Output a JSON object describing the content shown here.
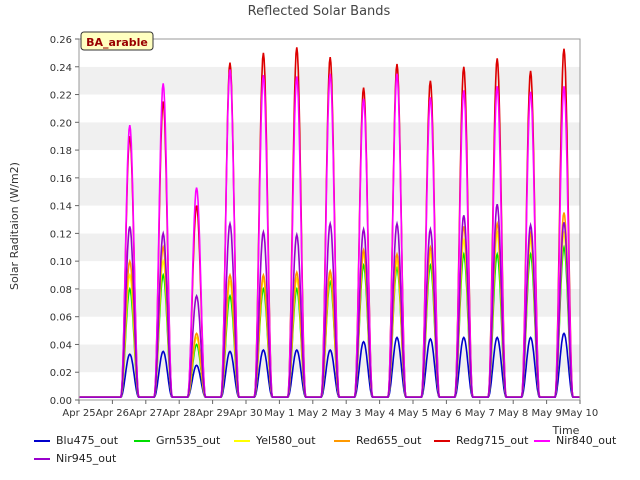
{
  "chart_data": {
    "type": "line",
    "title": "Reflected Solar Bands",
    "xlabel": "Time",
    "ylabel": "Solar Raditaion (W/m2)",
    "site_badge": "BA_arable",
    "ylim": [
      0,
      0.26
    ],
    "yticks": [
      "0.00",
      "0.02",
      "0.04",
      "0.06",
      "0.08",
      "0.10",
      "0.12",
      "0.14",
      "0.16",
      "0.18",
      "0.20",
      "0.22",
      "0.24",
      "0.26"
    ],
    "xticks": [
      "Apr 25",
      "Apr 26",
      "Apr 27",
      "Apr 28",
      "Apr 29",
      "Apr 30",
      "May 1",
      "May 2",
      "May 3",
      "May 4",
      "May 5",
      "May 6",
      "May 7",
      "May 8",
      "May 9",
      "May 10"
    ],
    "grid": "horizontal bands",
    "legend_position": "bottom",
    "x_days": [
      "Apr 25",
      "Apr 26",
      "Apr 27",
      "Apr 28",
      "Apr 29",
      "Apr 30",
      "May 1",
      "May 2",
      "May 3",
      "May 4",
      "May 5",
      "May 6",
      "May 7",
      "May 8",
      "May 9"
    ],
    "series": [
      {
        "name": "Blu475_out",
        "color": "#0000cc",
        "daily_peak": [
          0.002,
          0.033,
          0.035,
          0.025,
          0.035,
          0.036,
          0.036,
          0.036,
          0.042,
          0.045,
          0.044,
          0.045,
          0.045,
          0.045,
          0.048
        ]
      },
      {
        "name": "Grn535_out",
        "color": "#00dd00",
        "daily_peak": [
          0.002,
          0.08,
          0.09,
          0.04,
          0.075,
          0.08,
          0.08,
          0.085,
          0.097,
          0.095,
          0.097,
          0.105,
          0.105,
          0.105,
          0.11
        ]
      },
      {
        "name": "Yel580_out",
        "color": "#ffff00",
        "daily_peak": [
          0.002,
          0.09,
          0.1,
          0.045,
          0.085,
          0.087,
          0.087,
          0.09,
          0.105,
          0.1,
          0.105,
          0.115,
          0.12,
          0.115,
          0.12
        ]
      },
      {
        "name": "Red655_out",
        "color": "#ff9900",
        "daily_peak": [
          0.002,
          0.1,
          0.11,
          0.048,
          0.09,
          0.09,
          0.092,
          0.093,
          0.108,
          0.105,
          0.11,
          0.125,
          0.127,
          0.12,
          0.135
        ]
      },
      {
        "name": "Redg715_out",
        "color": "#dd0000",
        "daily_peak": [
          0.002,
          0.19,
          0.215,
          0.14,
          0.243,
          0.25,
          0.254,
          0.247,
          0.225,
          0.242,
          0.23,
          0.24,
          0.246,
          0.237,
          0.253
        ]
      },
      {
        "name": "Nir840_out",
        "color": "#ff00ff",
        "daily_peak": [
          0.002,
          0.198,
          0.228,
          0.153,
          0.238,
          0.234,
          0.233,
          0.235,
          0.217,
          0.235,
          0.218,
          0.223,
          0.226,
          0.222,
          0.226
        ]
      },
      {
        "name": "Nir945_out",
        "color": "#9900cc",
        "daily_peak": [
          0.002,
          0.125,
          0.12,
          0.075,
          0.127,
          0.121,
          0.119,
          0.127,
          0.123,
          0.127,
          0.123,
          0.133,
          0.141,
          0.126,
          0.128
        ]
      }
    ]
  }
}
